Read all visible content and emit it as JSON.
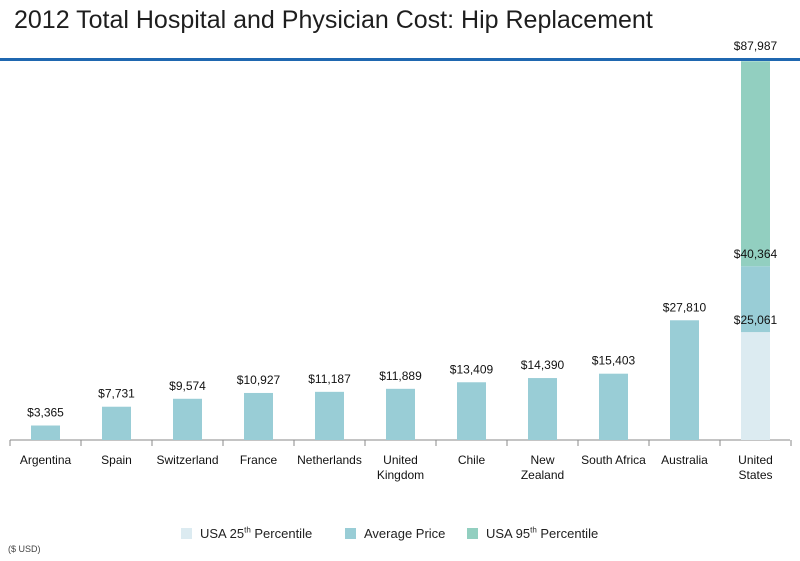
{
  "page": {
    "footnote": "($ USD)"
  },
  "colors": {
    "average": "#99cdd6",
    "p25": "#dcebf1",
    "p95": "#92cfc0",
    "rule": "#1f67b0",
    "axis": "#8a8a8a"
  },
  "chart_data": {
    "type": "bar",
    "title": "2012 Total Hospital and Physician Cost: Hip Replacement",
    "xlabel": "",
    "ylabel": "",
    "ylim": [
      0,
      100000
    ],
    "grid": false,
    "legend_position": "bottom",
    "categories": [
      [
        "Argentina"
      ],
      [
        "Spain"
      ],
      [
        "Switzerland"
      ],
      [
        "France"
      ],
      [
        "Netherlands"
      ],
      [
        "United",
        "Kingdom"
      ],
      [
        "Chile"
      ],
      [
        "New",
        "Zealand"
      ],
      [
        "South Africa"
      ],
      [
        "Australia"
      ],
      [
        "United",
        "States"
      ]
    ],
    "series": [
      {
        "name": "Average Price",
        "values": [
          3365,
          7731,
          9574,
          10927,
          11187,
          11889,
          13409,
          14390,
          15403,
          27810,
          40364
        ],
        "labels": [
          "$3,365",
          "$7,731",
          "$9,574",
          "$10,927",
          "$11,187",
          "$11,889",
          "$13,409",
          "$14,390",
          "$15,403",
          "$27,810",
          "$40,364"
        ]
      }
    ],
    "united_states_range": {
      "p25": 25061,
      "p25_label": "$25,061",
      "average": 40364,
      "p95": 87987,
      "p95_label": "$87,987"
    },
    "legend": [
      {
        "key": "p25",
        "text": "USA 25",
        "sup": "th",
        "after": " Percentile"
      },
      {
        "key": "average",
        "text": "Average Price",
        "sup": "",
        "after": ""
      },
      {
        "key": "p95",
        "text": "USA  95",
        "sup": "th",
        "after": " Percentile"
      }
    ]
  }
}
